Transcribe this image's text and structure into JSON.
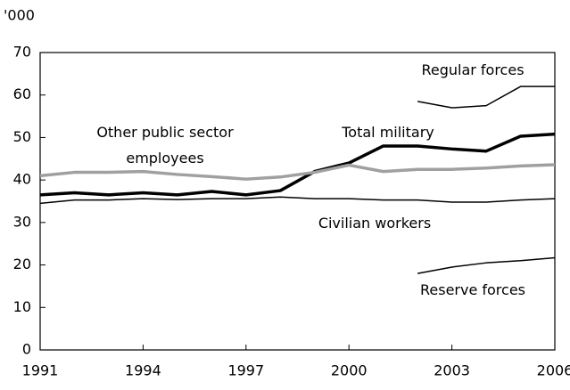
{
  "chart_data": {
    "type": "line",
    "y_axis_label": "'000",
    "x": [
      1991,
      1992,
      1993,
      1994,
      1995,
      1996,
      1997,
      1998,
      1999,
      2000,
      2001,
      2002,
      2003,
      2004,
      2005,
      2006
    ],
    "xlim": [
      1991,
      2006
    ],
    "xticks": [
      1991,
      1994,
      1997,
      2000,
      2003,
      2006
    ],
    "ylim": [
      0,
      70
    ],
    "yticks": [
      0,
      10,
      20,
      30,
      40,
      50,
      60,
      70
    ],
    "series": [
      {
        "name": "Regular forces",
        "color": "#000000",
        "values": [
          null,
          null,
          null,
          null,
          null,
          null,
          null,
          null,
          null,
          null,
          null,
          58.5,
          57,
          57.5,
          62,
          62
        ]
      },
      {
        "name": "Total military",
        "color": "#000000",
        "values": [
          36.5,
          37,
          36.5,
          37,
          36.5,
          37.3,
          36.5,
          37.5,
          42,
          44,
          48,
          48,
          47.3,
          46.8,
          50.3,
          50.8
        ]
      },
      {
        "name": "Other public sector employees",
        "color": "#a0a0a0",
        "values": [
          41,
          41.8,
          41.8,
          42,
          41.3,
          40.8,
          40.2,
          40.7,
          41.8,
          43.5,
          42,
          42.5,
          42.5,
          42.8,
          43.3,
          43.6
        ]
      },
      {
        "name": "Civilian workers",
        "color": "#000000",
        "values": [
          34.5,
          35.3,
          35.3,
          35.6,
          35.4,
          35.6,
          35.6,
          36,
          35.6,
          35.6,
          35.3,
          35.3,
          34.8,
          34.8,
          35.3,
          35.6
        ]
      },
      {
        "name": "Reserve forces",
        "color": "#000000",
        "values": [
          null,
          null,
          null,
          null,
          null,
          null,
          null,
          null,
          null,
          null,
          null,
          18,
          19.5,
          20.5,
          21,
          21.7
        ]
      }
    ]
  }
}
